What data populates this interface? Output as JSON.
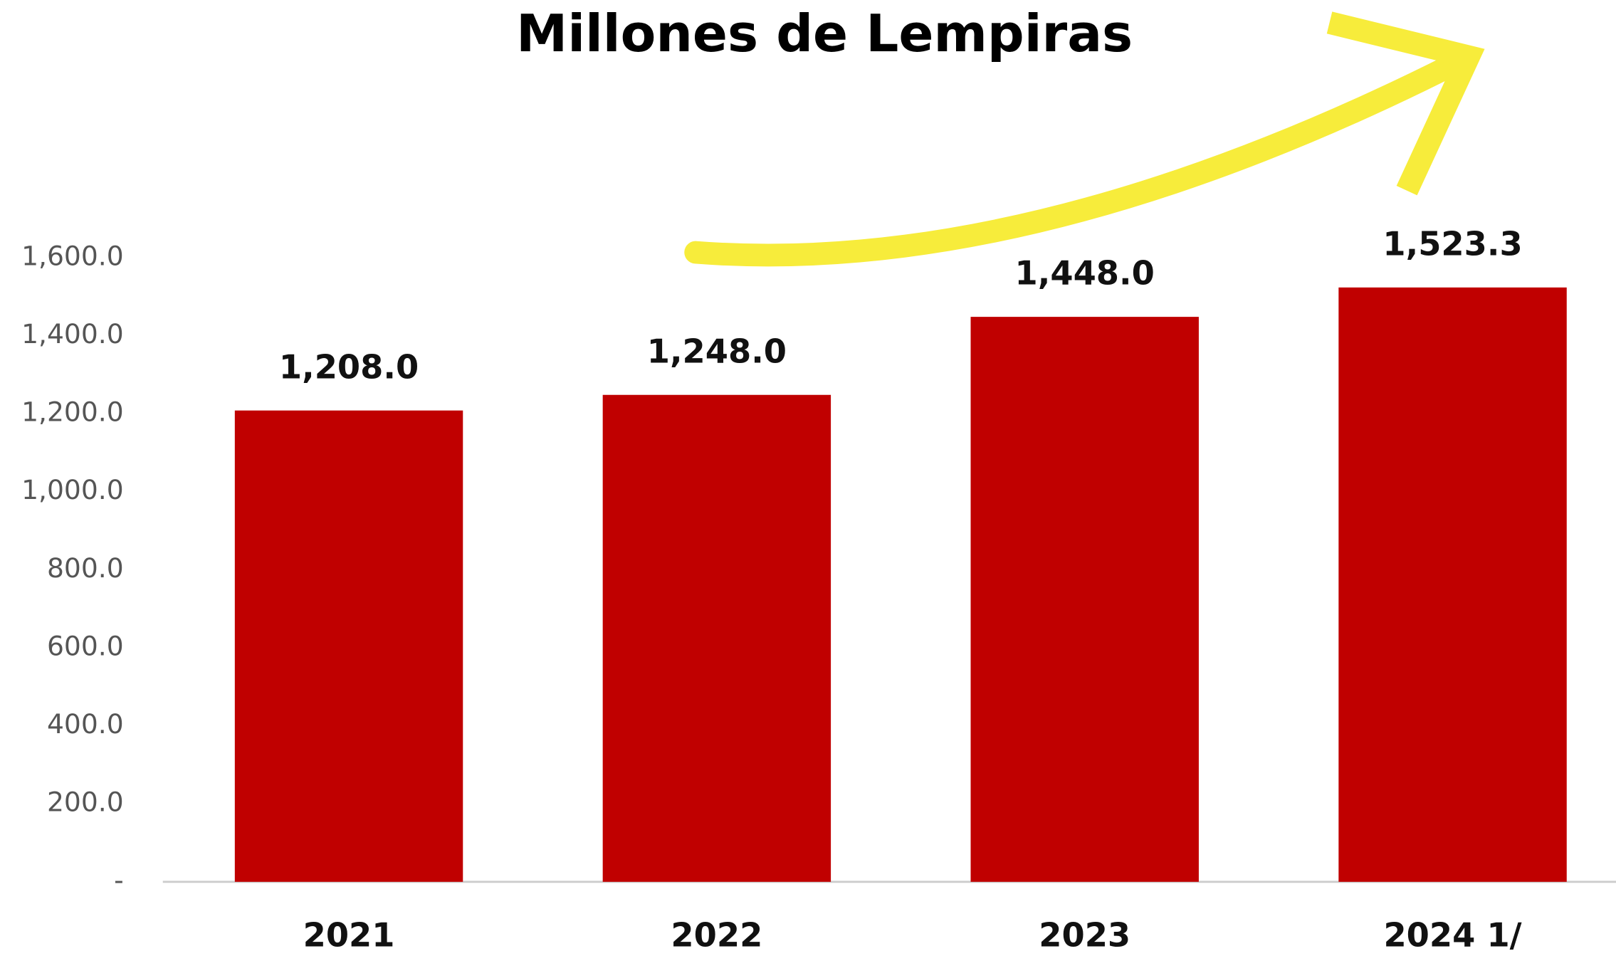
{
  "chart_data": {
    "type": "bar",
    "title": "Millones de Lempiras",
    "categories": [
      "2021",
      "2022",
      "2023",
      "2024 1/"
    ],
    "values": [
      1208.0,
      1248.0,
      1448.0,
      1523.3
    ],
    "value_labels": [
      "1,208.0",
      "1,248.0",
      "1,448.0",
      "1,523.3"
    ],
    "color": "#c00000",
    "ylim": [
      0,
      1600
    ],
    "yticks": [
      {
        "value": 0,
        "label": "-"
      },
      {
        "value": 200,
        "label": "200.0"
      },
      {
        "value": 400,
        "label": "400.0"
      },
      {
        "value": 600,
        "label": "600.0"
      },
      {
        "value": 800,
        "label": "800.0"
      },
      {
        "value": 1000,
        "label": "1,000.0"
      },
      {
        "value": 1200,
        "label": "1,200.0"
      },
      {
        "value": 1400,
        "label": "1,400.0"
      },
      {
        "value": 1600,
        "label": "1,600.0"
      }
    ],
    "grid": false
  }
}
